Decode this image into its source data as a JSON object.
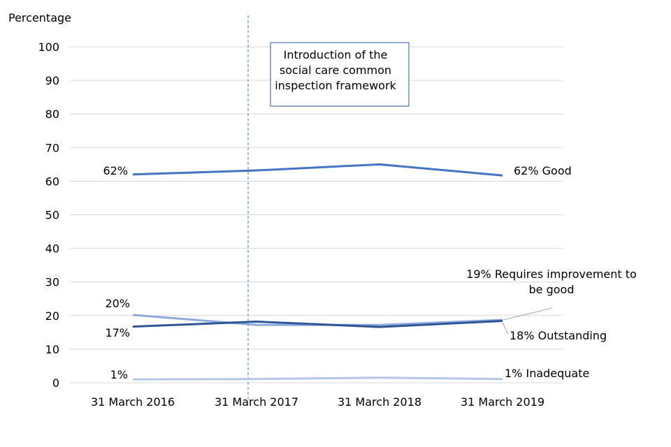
{
  "chart_data": {
    "type": "line",
    "ylabel": "Percentage",
    "ylim": [
      0,
      100
    ],
    "yticks": [
      0,
      10,
      20,
      30,
      40,
      50,
      60,
      70,
      80,
      90,
      100
    ],
    "categories": [
      "31 March 2016",
      "31 March 2017",
      "31 March 2018",
      "31 March 2019"
    ],
    "grid": true,
    "series": [
      {
        "key": "good",
        "values": [
          62,
          63.2,
          65,
          61.7
        ],
        "color": "#4472c4",
        "start_label": "62%",
        "end_label": "62% Good"
      },
      {
        "key": "requires_improvement",
        "values": [
          20.2,
          17.2,
          17.2,
          18.7
        ],
        "color": "#8faadc",
        "start_label": "20%",
        "end_label": [
          "19% Requires improvement to",
          "be good"
        ]
      },
      {
        "key": "outstanding",
        "values": [
          16.7,
          18.2,
          16.6,
          18.4
        ],
        "color": "#2f5597",
        "start_label": "17%",
        "end_label": "18% Outstanding"
      },
      {
        "key": "inadequate",
        "values": [
          1,
          1.1,
          1.5,
          1.1
        ],
        "color": "#b4c7e7",
        "start_label": "1%",
        "end_label": "1% Inadequate"
      }
    ],
    "annotation": {
      "category": "31 March 2017",
      "lines": [
        "Introduction of the",
        "social care common",
        "inspection framework"
      ]
    }
  }
}
